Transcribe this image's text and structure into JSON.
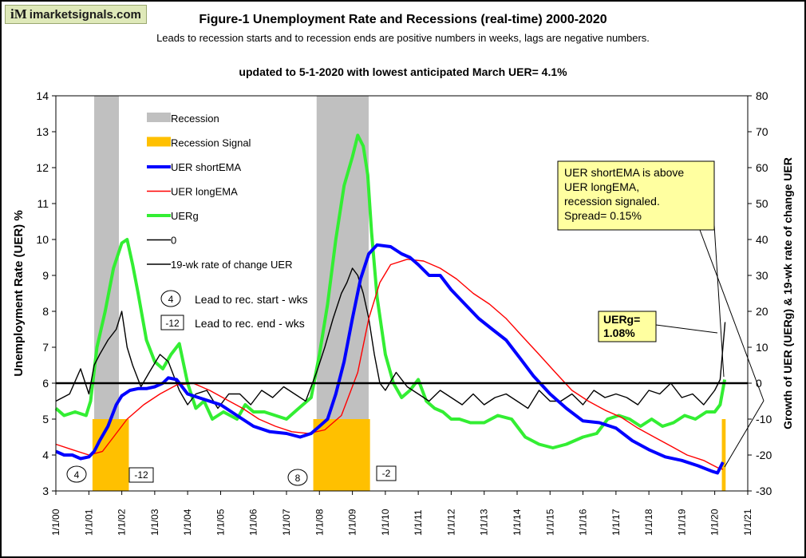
{
  "brand": {
    "logo": "iM",
    "name": "imarketsignals.com"
  },
  "title": "Figure-1  Unemployment Rate and Recessions (real-time) 2000-2020",
  "subtitle": "Leads to recession starts and to recession ends are positive numbers in weeks, lags are negative numbers.",
  "update_note": "updated to 5-1-2020 with lowest anticipated March UER= 4.1%",
  "chart_data": {
    "type": "line",
    "x_range": [
      "2000-01-01",
      "2021-01-01"
    ],
    "x_ticks": [
      "1/1/00",
      "1/1/01",
      "1/1/02",
      "1/1/03",
      "1/1/04",
      "1/1/05",
      "1/1/06",
      "1/1/07",
      "1/1/08",
      "1/1/09",
      "1/1/10",
      "1/1/11",
      "1/1/12",
      "1/1/13",
      "1/1/14",
      "1/1/15",
      "1/1/16",
      "1/1/17",
      "1/1/18",
      "1/1/19",
      "1/1/20",
      "1/1/21"
    ],
    "ylabel": "Unemployment Rate (UER) %",
    "ylim": [
      3,
      14
    ],
    "y_ticks": [
      3,
      4,
      5,
      6,
      7,
      8,
      9,
      10,
      11,
      12,
      13,
      14
    ],
    "y2label": "Growth of UER (UERg) & 19-wk rate of change UER",
    "y2lim": [
      -30,
      80
    ],
    "y2_ticks": [
      -30,
      -20,
      -10,
      0,
      10,
      20,
      30,
      40,
      50,
      60,
      70,
      80
    ],
    "legend_position": "top-left",
    "recessions": [
      {
        "start": "2001-03-01",
        "end": "2001-11-30"
      },
      {
        "start": "2007-12-01",
        "end": "2009-06-30"
      }
    ],
    "recession_signals": [
      {
        "start": "2001-02-10",
        "end": "2002-03-20",
        "level": 5.0
      },
      {
        "start": "2007-10-25",
        "end": "2009-07-15",
        "level": 5.0
      },
      {
        "start": "2020-03-20",
        "end": "2020-05-01",
        "level": 5.0
      }
    ],
    "series": [
      {
        "name": "Recession",
        "color": "#c0c0c0",
        "axis": "left"
      },
      {
        "name": "Recession Signal",
        "color": "#ffc000",
        "axis": "left"
      },
      {
        "name": "UER shortEMA",
        "color": "#0000ff",
        "axis": "left",
        "x": [
          "2000-01-01",
          "2000-04-01",
          "2000-07-01",
          "2000-10-01",
          "2001-01-01",
          "2001-03-01",
          "2001-05-01",
          "2001-08-01",
          "2001-11-01",
          "2002-01-01",
          "2002-04-01",
          "2002-07-01",
          "2002-10-01",
          "2003-01-01",
          "2003-04-01",
          "2003-06-01",
          "2003-09-01",
          "2004-01-01",
          "2004-07-01",
          "2005-01-01",
          "2005-07-01",
          "2006-01-01",
          "2006-07-01",
          "2007-01-01",
          "2007-06-01",
          "2007-10-01",
          "2008-01-01",
          "2008-04-01",
          "2008-07-01",
          "2008-10-01",
          "2009-01-01",
          "2009-04-01",
          "2009-07-01",
          "2009-10-01",
          "2010-03-01",
          "2010-07-01",
          "2010-10-01",
          "2011-01-01",
          "2011-05-01",
          "2011-09-01",
          "2012-01-01",
          "2012-06-01",
          "2012-11-01",
          "2013-04-01",
          "2013-09-01",
          "2014-02-01",
          "2014-07-01",
          "2015-01-01",
          "2015-07-01",
          "2016-01-01",
          "2016-07-01",
          "2017-01-01",
          "2017-07-01",
          "2018-01-01",
          "2018-07-01",
          "2019-01-01",
          "2019-07-01",
          "2019-12-01",
          "2020-02-01",
          "2020-04-01"
        ],
        "values": [
          4.1,
          4.0,
          4.0,
          3.9,
          3.95,
          4.1,
          4.4,
          4.8,
          5.4,
          5.65,
          5.8,
          5.85,
          5.85,
          5.9,
          6.0,
          6.15,
          6.1,
          5.7,
          5.55,
          5.4,
          5.1,
          4.8,
          4.65,
          4.6,
          4.5,
          4.6,
          4.8,
          5.0,
          5.7,
          6.6,
          7.8,
          8.9,
          9.6,
          9.85,
          9.8,
          9.6,
          9.5,
          9.3,
          9.0,
          9.0,
          8.6,
          8.2,
          7.8,
          7.5,
          7.2,
          6.7,
          6.2,
          5.7,
          5.3,
          4.95,
          4.9,
          4.75,
          4.4,
          4.15,
          3.95,
          3.85,
          3.7,
          3.55,
          3.5,
          3.8
        ]
      },
      {
        "name": "UER longEMA",
        "color": "#ff0000",
        "axis": "left",
        "x": [
          "2000-01-01",
          "2000-07-01",
          "2001-01-01",
          "2001-06-01",
          "2001-10-01",
          "2002-03-01",
          "2002-09-01",
          "2003-03-01",
          "2003-09-01",
          "2004-03-01",
          "2004-09-01",
          "2005-03-01",
          "2005-09-01",
          "2006-03-01",
          "2006-09-01",
          "2007-03-01",
          "2007-09-01",
          "2008-03-01",
          "2008-09-01",
          "2009-03-01",
          "2009-07-01",
          "2009-11-01",
          "2010-03-01",
          "2010-09-01",
          "2011-03-01",
          "2011-09-01",
          "2012-03-01",
          "2012-09-01",
          "2013-03-01",
          "2013-09-01",
          "2014-03-01",
          "2014-09-01",
          "2015-03-01",
          "2015-09-01",
          "2016-03-01",
          "2016-09-01",
          "2017-03-01",
          "2017-09-01",
          "2018-03-01",
          "2018-09-01",
          "2019-03-01",
          "2019-09-01",
          "2020-02-01",
          "2020-04-01"
        ],
        "values": [
          4.3,
          4.15,
          4.0,
          4.1,
          4.5,
          5.0,
          5.4,
          5.7,
          5.95,
          6.0,
          5.8,
          5.55,
          5.3,
          5.0,
          4.8,
          4.65,
          4.6,
          4.7,
          5.1,
          6.3,
          7.8,
          8.8,
          9.3,
          9.45,
          9.4,
          9.2,
          8.9,
          8.5,
          8.2,
          7.8,
          7.3,
          6.8,
          6.3,
          5.8,
          5.5,
          5.25,
          5.05,
          4.75,
          4.5,
          4.25,
          4.0,
          3.85,
          3.65,
          3.6
        ]
      },
      {
        "name": "UERg",
        "color": "#33ee33",
        "axis": "right",
        "x": [
          "2000-01-01",
          "2000-04-01",
          "2000-08-01",
          "2000-12-01",
          "2001-01-20",
          "2001-04-01",
          "2001-07-01",
          "2001-10-01",
          "2002-01-01",
          "2002-03-01",
          "2002-05-01",
          "2002-07-01",
          "2002-10-01",
          "2003-01-01",
          "2003-04-01",
          "2003-07-01",
          "2003-10-01",
          "2004-01-01",
          "2004-04-01",
          "2004-07-01",
          "2004-10-01",
          "2005-02-01",
          "2005-07-01",
          "2005-10-01",
          "2006-01-01",
          "2006-05-01",
          "2006-09-01",
          "2007-01-01",
          "2007-04-01",
          "2007-07-01",
          "2007-10-01",
          "2008-01-01",
          "2008-04-01",
          "2008-07-01",
          "2008-10-01",
          "2009-01-01",
          "2009-03-01",
          "2009-05-01",
          "2009-06-20",
          "2009-08-01",
          "2009-10-01",
          "2010-01-01",
          "2010-04-01",
          "2010-07-01",
          "2010-10-01",
          "2011-01-01",
          "2011-04-01",
          "2011-07-01",
          "2011-10-01",
          "2012-01-01",
          "2012-04-01",
          "2012-08-01",
          "2013-01-01",
          "2013-06-01",
          "2013-11-01",
          "2014-04-01",
          "2014-09-01",
          "2015-02-01",
          "2015-07-01",
          "2016-01-01",
          "2016-06-01",
          "2016-10-01",
          "2017-02-01",
          "2017-06-01",
          "2017-10-01",
          "2018-02-01",
          "2018-06-01",
          "2018-10-01",
          "2019-02-01",
          "2019-06-01",
          "2019-10-01",
          "2020-01-01",
          "2020-03-01",
          "2020-04-20"
        ],
        "values": [
          -7,
          -9,
          -8,
          -9,
          -5,
          10,
          20,
          32,
          39,
          40,
          33,
          25,
          12,
          6,
          4,
          8,
          11,
          0,
          -7,
          -5,
          -10,
          -8,
          -10,
          -6,
          -8,
          -8,
          -9,
          -10,
          -8,
          -6,
          -4,
          8,
          22,
          40,
          55,
          63,
          69,
          66,
          58,
          42,
          24,
          8,
          0,
          -4,
          -2,
          1,
          -5,
          -7,
          -8,
          -10,
          -10,
          -11,
          -11,
          -9,
          -10,
          -15,
          -17,
          -18,
          -17,
          -15,
          -14,
          -10,
          -9,
          -10,
          -12,
          -10,
          -12,
          -11,
          -9,
          -10,
          -8,
          -8,
          -6,
          1
        ]
      },
      {
        "name": "0",
        "color": "#000000",
        "axis": "right",
        "values": [
          0
        ]
      },
      {
        "name": "19-wk rate of change UER",
        "color": "#000000",
        "axis": "right",
        "x": [
          "2000-01-01",
          "2000-06-01",
          "2000-10-01",
          "2001-01-01",
          "2001-03-01",
          "2001-05-01",
          "2001-08-01",
          "2001-11-01",
          "2002-01-01",
          "2002-03-01",
          "2002-05-01",
          "2002-08-01",
          "2002-11-01",
          "2003-03-01",
          "2003-06-01",
          "2003-10-01",
          "2004-01-01",
          "2004-04-01",
          "2004-08-01",
          "2004-12-01",
          "2005-04-01",
          "2005-08-01",
          "2005-12-01",
          "2006-04-01",
          "2006-08-01",
          "2006-12-01",
          "2007-04-01",
          "2007-08-01",
          "2007-12-01",
          "2008-03-01",
          "2008-06-01",
          "2008-09-01",
          "2008-11-01",
          "2009-01-01",
          "2009-03-01",
          "2009-05-01",
          "2009-07-01",
          "2009-09-01",
          "2009-11-01",
          "2010-01-01",
          "2010-05-01",
          "2010-09-01",
          "2011-01-01",
          "2011-05-01",
          "2011-09-01",
          "2012-01-01",
          "2012-05-01",
          "2012-09-01",
          "2013-01-01",
          "2013-05-01",
          "2013-09-01",
          "2014-01-01",
          "2014-05-01",
          "2014-09-01",
          "2015-01-01",
          "2015-05-01",
          "2015-09-01",
          "2016-01-01",
          "2016-05-01",
          "2016-09-01",
          "2017-01-01",
          "2017-05-01",
          "2017-09-01",
          "2018-01-01",
          "2018-05-01",
          "2018-09-01",
          "2019-01-01",
          "2019-05-01",
          "2019-09-01",
          "2020-01-01",
          "2020-03-01",
          "2020-04-25"
        ],
        "values": [
          -5,
          -3,
          4,
          -3,
          5,
          8,
          12,
          15,
          20,
          10,
          5,
          -1,
          3,
          8,
          6,
          -2,
          -6,
          -3,
          -2,
          -7,
          -3,
          -3,
          -6,
          -2,
          -4,
          -1,
          -3,
          -5,
          3,
          10,
          18,
          25,
          28,
          32,
          30,
          25,
          18,
          8,
          0,
          -2,
          3,
          -1,
          -3,
          -5,
          -2,
          -4,
          -6,
          -3,
          -6,
          -4,
          -3,
          -5,
          -7,
          -2,
          -5,
          -5,
          -3,
          -6,
          -2,
          -4,
          -3,
          -4,
          -6,
          -2,
          -3,
          0,
          -4,
          -3,
          -6,
          -2,
          1,
          17
        ]
      }
    ],
    "annotations": {
      "lead_start_example": "4",
      "lead_start_text": "Lead to rec. start - wks",
      "lead_end_example": "-12",
      "lead_end_text": "Lead to rec. end - wks",
      "marker_start_2001": "4",
      "marker_end_2001": "-12",
      "marker_start_2008": "8",
      "marker_end_2009": "-2",
      "signal_box": [
        "UER shortEMA  is above",
        "UER longEMA,",
        "recession signaled.",
        "Spread= 0.15%"
      ],
      "uerg_box": [
        "UERg=",
        "1.08%"
      ]
    }
  }
}
